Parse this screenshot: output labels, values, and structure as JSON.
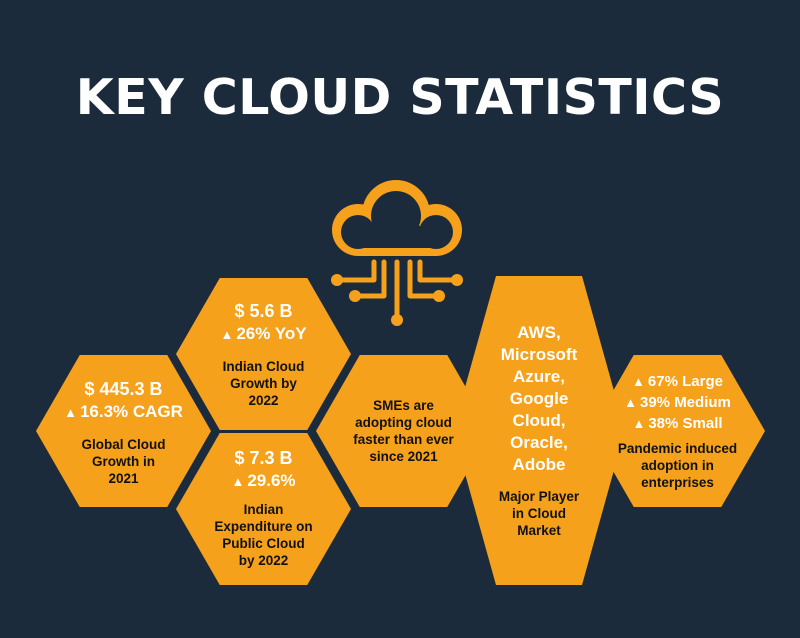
{
  "title": "KEY CLOUD STATISTICS",
  "colors": {
    "background": "#1c2b3b",
    "accent": "#f6a11b",
    "stat_text": "#ffffff",
    "desc_text": "#111111"
  },
  "icon": "cloud-network-icon",
  "hexes": {
    "global": {
      "value": "$ 445.3 B",
      "growth": "16.3% CAGR",
      "desc1": "Global Cloud",
      "desc2": "Growth in",
      "desc3": "2021"
    },
    "indian_growth": {
      "value": "$ 5.6 B",
      "growth": "26% YoY",
      "desc1": "Indian Cloud",
      "desc2": "Growth by",
      "desc3": "2022"
    },
    "expenditure": {
      "value": "$ 7.3 B",
      "growth": "29.6%",
      "desc1": "Indian",
      "desc2": "Expenditure on",
      "desc3": "Public Cloud",
      "desc4": "by 2022"
    },
    "smes": {
      "desc1": "SMEs are",
      "desc2": "adopting cloud",
      "desc3": "faster than ever",
      "desc4": "since 2021"
    },
    "players": {
      "l1": "AWS,",
      "l2": "Microsoft",
      "l3": "Azure,",
      "l4": "Google",
      "l5": "Cloud,",
      "l6": "Oracle,",
      "l7": "Adobe",
      "desc1": "Major Player",
      "desc2": "in Cloud",
      "desc3": "Market"
    },
    "pandemic": {
      "s1": "67% Large",
      "s2": "39% Medium",
      "s3": "38% Small",
      "desc1": "Pandemic induced",
      "desc2": "adoption in",
      "desc3": "enterprises"
    }
  }
}
